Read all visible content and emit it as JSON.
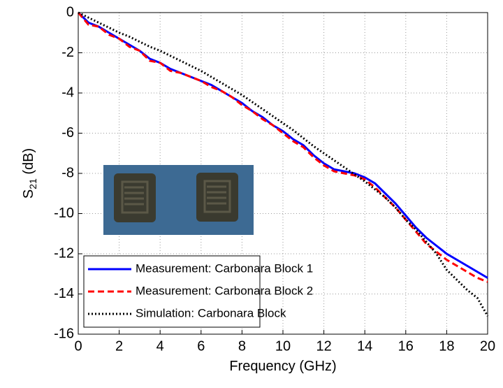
{
  "chart_data": {
    "type": "line",
    "xlabel": "Frequency (GHz)",
    "ylabel": {
      "text": "S",
      "subscript": "21",
      "suffix": " (dB)"
    },
    "x": [
      0,
      0.5,
      1,
      1.5,
      2,
      2.5,
      3,
      3.5,
      4,
      4.5,
      5,
      5.5,
      6,
      6.5,
      7,
      7.5,
      8,
      8.5,
      9,
      9.5,
      10,
      10.5,
      11,
      11.5,
      12,
      12.5,
      13,
      13.5,
      14,
      14.5,
      15,
      15.5,
      16,
      16.5,
      17,
      17.5,
      18,
      18.5,
      19,
      19.5,
      20
    ],
    "series": [
      {
        "name": "Measurement: Carbonara Block 1",
        "color": "#0000ff",
        "style": "solid",
        "values": [
          0,
          -0.5,
          -0.7,
          -1.0,
          -1.3,
          -1.6,
          -1.9,
          -2.3,
          -2.5,
          -2.8,
          -3.0,
          -3.2,
          -3.4,
          -3.6,
          -3.9,
          -4.2,
          -4.5,
          -4.9,
          -5.2,
          -5.6,
          -5.9,
          -6.3,
          -6.6,
          -7.1,
          -7.5,
          -7.8,
          -7.9,
          -8.0,
          -8.2,
          -8.5,
          -9.0,
          -9.5,
          -10.1,
          -10.7,
          -11.2,
          -11.6,
          -12.0,
          -12.3,
          -12.6,
          -12.9,
          -13.2
        ]
      },
      {
        "name": "Measurement: Carbonara Block 2",
        "color": "#ff0000",
        "style": "dashed",
        "values": [
          0,
          -0.6,
          -0.7,
          -1.1,
          -1.3,
          -1.7,
          -1.9,
          -2.4,
          -2.5,
          -2.9,
          -3.0,
          -3.2,
          -3.4,
          -3.7,
          -3.9,
          -4.2,
          -4.6,
          -4.9,
          -5.3,
          -5.6,
          -6.0,
          -6.4,
          -6.7,
          -7.2,
          -7.6,
          -7.9,
          -8.0,
          -8.1,
          -8.3,
          -8.7,
          -9.2,
          -9.7,
          -10.3,
          -10.9,
          -11.5,
          -11.9,
          -12.3,
          -12.6,
          -12.9,
          -13.2,
          -13.4
        ]
      },
      {
        "name": "Simulation: Carbonara Block",
        "color": "#000000",
        "style": "dotted",
        "values": [
          0,
          -0.25,
          -0.5,
          -0.75,
          -1.0,
          -1.2,
          -1.45,
          -1.7,
          -1.9,
          -2.15,
          -2.4,
          -2.65,
          -2.9,
          -3.2,
          -3.5,
          -3.8,
          -4.1,
          -4.45,
          -4.8,
          -5.15,
          -5.5,
          -5.85,
          -6.25,
          -6.65,
          -7.0,
          -7.35,
          -7.7,
          -8.05,
          -8.4,
          -8.8,
          -9.2,
          -9.7,
          -10.3,
          -10.8,
          -11.4,
          -12.0,
          -12.8,
          -13.3,
          -13.8,
          -14.2,
          -15.1
        ]
      }
    ],
    "xlim": [
      0,
      20
    ],
    "xticks": [
      0,
      2,
      4,
      6,
      8,
      10,
      12,
      14,
      16,
      18,
      20
    ],
    "ylim": [
      -16,
      0
    ],
    "yticks": [
      0,
      -2,
      -4,
      -6,
      -8,
      -10,
      -12,
      -14,
      -16
    ],
    "grid": true,
    "legend": "lower-left"
  }
}
